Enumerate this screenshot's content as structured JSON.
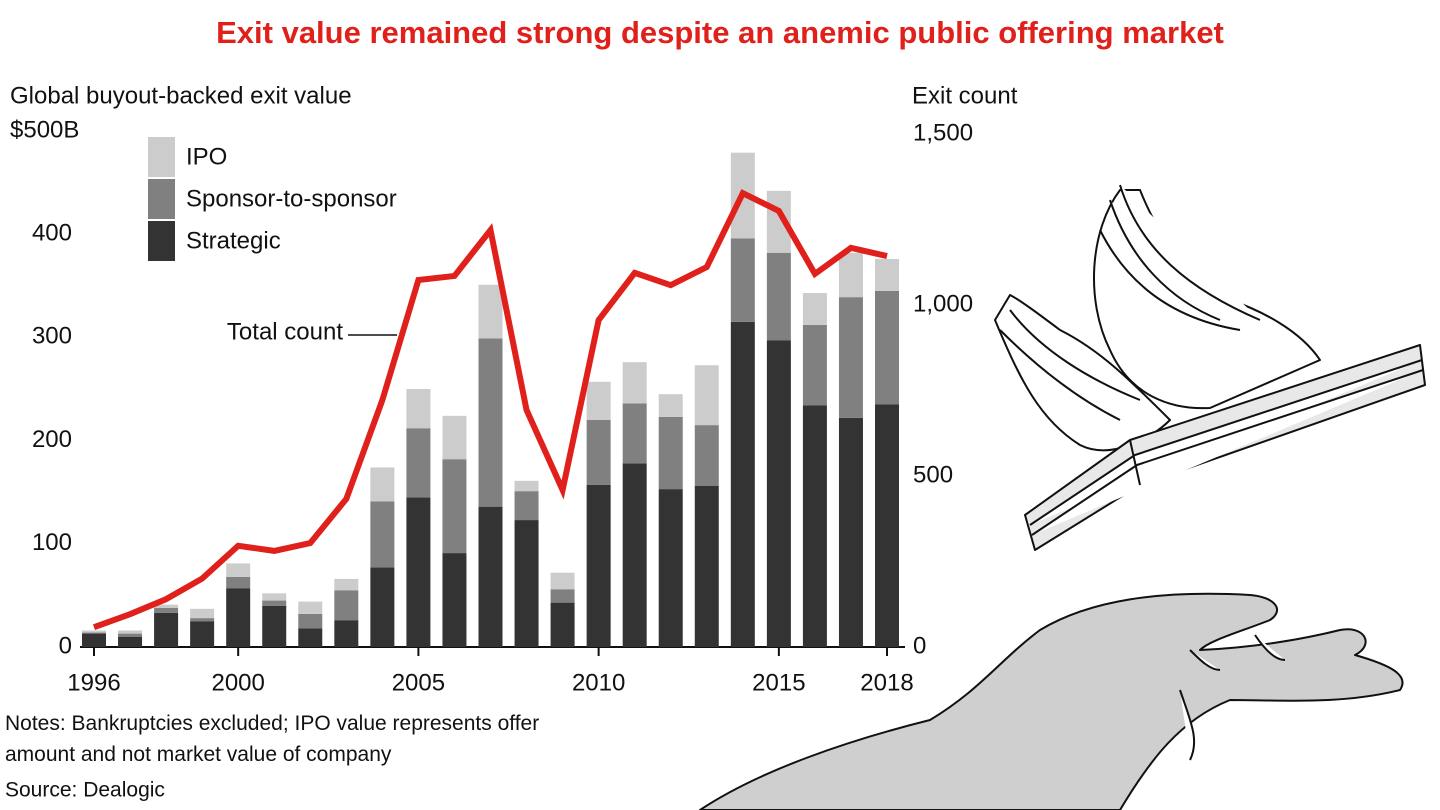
{
  "chart_data": {
    "type": "stacked_bar_line",
    "title": "Exit value remained strong despite an anemic public offering market",
    "y_axis_title": "Global buyout-backed exit value",
    "y2_axis_title": "Exit count",
    "annotation": "Total count",
    "notes": "Notes: Bankruptcies excluded; IPO value represents offer amount and not market value of company",
    "source": "Source: Dealogic",
    "x": [
      1996,
      1997,
      1998,
      1999,
      2000,
      2001,
      2002,
      2003,
      2004,
      2005,
      2006,
      2007,
      2008,
      2009,
      2010,
      2011,
      2012,
      2013,
      2014,
      2015,
      2016,
      2017,
      2018
    ],
    "xlim": [
      1995.6,
      2018.5
    ],
    "xticks": [
      1996,
      2000,
      2005,
      2010,
      2015,
      2018
    ],
    "ylim": [
      0,
      500
    ],
    "yticks": [
      0,
      100,
      200,
      300,
      400,
      {
        "value": 500,
        "label": "$500B"
      }
    ],
    "y2lim": [
      0,
      1500
    ],
    "y2ticks": [
      0,
      500,
      {
        "value": 1000,
        "label": "1,000"
      },
      {
        "value": 1500,
        "label": "1,500"
      }
    ],
    "series": [
      {
        "name": "Strategic",
        "color": "#333333",
        "values": [
          13,
          10,
          33,
          25,
          57,
          40,
          18,
          26,
          77,
          145,
          91,
          136,
          123,
          43,
          157,
          178,
          153,
          156,
          315,
          297,
          234,
          222,
          235
        ]
      },
      {
        "name": "Sponsor-to-sponsor",
        "color": "#808080",
        "values": [
          1,
          3,
          5,
          3,
          11,
          5,
          14,
          29,
          64,
          67,
          91,
          163,
          28,
          13,
          63,
          58,
          70,
          59,
          81,
          85,
          78,
          117,
          110
        ]
      },
      {
        "name": "IPO",
        "color": "#cccccc",
        "values": [
          2,
          3,
          3,
          9,
          13,
          7,
          12,
          11,
          33,
          38,
          42,
          52,
          10,
          16,
          37,
          40,
          22,
          58,
          83,
          60,
          31,
          43,
          31
        ]
      },
      {
        "name": "Total count",
        "color": "#e0201b",
        "axis": "y2",
        "values": [
          58,
          96,
          140,
          200,
          296,
          281,
          304,
          433,
          722,
          1073,
          1085,
          1219,
          693,
          459,
          956,
          1094,
          1058,
          1111,
          1327,
          1275,
          1091,
          1167,
          1143
        ]
      }
    ]
  }
}
